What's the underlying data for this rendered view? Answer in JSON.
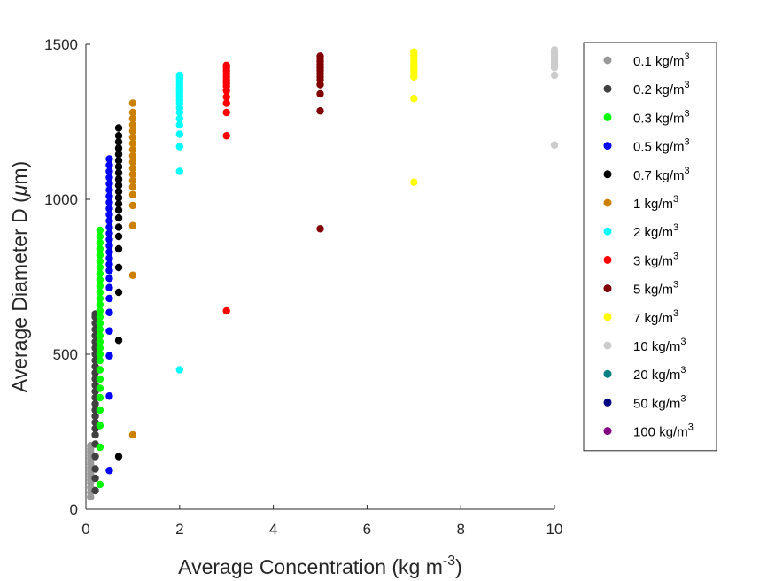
{
  "chart_data": {
    "type": "scatter",
    "xlabel": {
      "main": "Average Concentration (kg m",
      "sup": "-3",
      "tail": ")"
    },
    "ylabel": {
      "main": "Average Diameter D (",
      "greek": "μ",
      "tail": "m)"
    },
    "xlim": [
      0,
      10
    ],
    "ylim": [
      0,
      1500
    ],
    "x_ticks": [
      0,
      2,
      4,
      6,
      8,
      10
    ],
    "y_ticks": [
      0,
      500,
      1000,
      1500
    ],
    "grid": false,
    "legend_position": "right",
    "series": [
      {
        "name": "0.1 kg/m",
        "sup": "3",
        "color": "#999999",
        "x": 0.1,
        "y": [
          40,
          55,
          70,
          85,
          95,
          105,
          115,
          125,
          135,
          145,
          155,
          165,
          175,
          185,
          195,
          205
        ]
      },
      {
        "name": "0.2 kg/m",
        "sup": "3",
        "color": "#404040",
        "x": 0.2,
        "y": [
          60,
          100,
          130,
          170,
          210,
          240,
          260,
          280,
          300,
          320,
          340,
          360,
          380,
          400,
          420,
          440,
          460,
          480,
          500,
          520,
          540,
          560,
          580,
          600,
          620,
          630
        ]
      },
      {
        "name": "0.3 kg/m",
        "sup": "3",
        "color": "#00ff00",
        "x": 0.3,
        "y": [
          80,
          200,
          270,
          320,
          360,
          390,
          420,
          450,
          480,
          500,
          520,
          540,
          560,
          580,
          600,
          620,
          640,
          660,
          680,
          700,
          720,
          740,
          760,
          780,
          800,
          820,
          840,
          860,
          880,
          900
        ]
      },
      {
        "name": "0.5 kg/m",
        "sup": "3",
        "color": "#0000ff",
        "x": 0.5,
        "y": [
          125,
          365,
          495,
          575,
          635,
          680,
          715,
          745,
          770,
          790,
          810,
          830,
          850,
          870,
          890,
          910,
          930,
          950,
          970,
          990,
          1010,
          1030,
          1050,
          1070,
          1090,
          1110,
          1130
        ]
      },
      {
        "name": "0.7 kg/m",
        "sup": "3",
        "color": "#000000",
        "x": 0.7,
        "y": [
          170,
          545,
          700,
          780,
          840,
          880,
          910,
          940,
          965,
          985,
          1005,
          1025,
          1045,
          1065,
          1085,
          1105,
          1125,
          1145,
          1165,
          1185,
          1205,
          1230
        ]
      },
      {
        "name": "1 kg/m",
        "sup": "3",
        "color": "#cc8000",
        "x": 1,
        "y": [
          240,
          755,
          915,
          980,
          1015,
          1040,
          1060,
          1080,
          1100,
          1120,
          1140,
          1160,
          1180,
          1200,
          1220,
          1240,
          1260,
          1280,
          1310
        ]
      },
      {
        "name": "2 kg/m",
        "sup": "3",
        "color": "#00ffff",
        "x": 2,
        "y": [
          450,
          1090,
          1170,
          1210,
          1240,
          1260,
          1280,
          1295,
          1310,
          1320,
          1330,
          1340,
          1350,
          1360,
          1370,
          1380,
          1390,
          1400
        ]
      },
      {
        "name": "3 kg/m",
        "sup": "3",
        "color": "#ff0000",
        "x": 3,
        "y": [
          640,
          1205,
          1280,
          1310,
          1330,
          1350,
          1365,
          1375,
          1385,
          1395,
          1405,
          1415,
          1425,
          1432
        ]
      },
      {
        "name": "5 kg/m",
        "sup": "3",
        "color": "#800000",
        "x": 5,
        "y": [
          905,
          1285,
          1340,
          1370,
          1385,
          1395,
          1405,
          1415,
          1425,
          1435,
          1445,
          1455,
          1462
        ]
      },
      {
        "name": "7 kg/m",
        "sup": "3",
        "color": "#ffff00",
        "x": 7,
        "y": [
          1055,
          1325,
          1395,
          1405,
          1415,
          1425,
          1435,
          1445,
          1455,
          1465,
          1475
        ]
      },
      {
        "name": "10 kg/m",
        "sup": "3",
        "color": "#cccccc",
        "x": 10,
        "y": [
          1175,
          1400,
          1425,
          1435,
          1445,
          1455,
          1465,
          1475,
          1482
        ]
      },
      {
        "name": "20 kg/m",
        "sup": "3",
        "color": "#008080",
        "x": 20,
        "y": []
      },
      {
        "name": "50 kg/m",
        "sup": "3",
        "color": "#000080",
        "x": 50,
        "y": []
      },
      {
        "name": "100 kg/m",
        "sup": "3",
        "color": "#800080",
        "x": 100,
        "y": []
      }
    ]
  }
}
